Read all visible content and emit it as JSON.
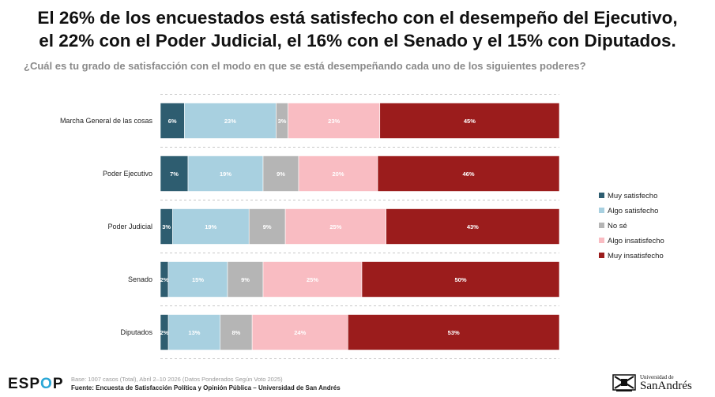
{
  "chart_data": {
    "type": "bar",
    "orientation": "horizontal",
    "stacked": true,
    "title": "El 26% de los encuestados está satisfecho con el desempeño del Ejecutivo, el 22% con el Poder Judicial, el 16% con el Senado y el 15% con Diputados.",
    "title_lines": [
      "El 26% de los encuestados está satisfecho con el desempeño del Ejecutivo,",
      "el 22% con el Poder Judicial, el 16% con el Senado y el 15% con Diputados."
    ],
    "subtitle": "¿Cuál es tu grado de satisfacción con el modo en que se está desempeñando cada uno de los siguientes poderes?",
    "categories": [
      "Marcha General de las cosas",
      "Poder Ejecutivo",
      "Poder Judicial",
      "Senado",
      "Diputados"
    ],
    "series": [
      {
        "name": "Muy satisfecho",
        "color": "#2e5d70",
        "label_color": "#ffffff",
        "values": [
          6,
          7,
          3,
          2,
          2
        ]
      },
      {
        "name": "Algo satisfecho",
        "color": "#a8d0e0",
        "label_color": "#ffffff",
        "values": [
          23,
          19,
          19,
          15,
          13
        ]
      },
      {
        "name": "No sé",
        "color": "#b5b5b5",
        "label_color": "#ffffff",
        "values": [
          3,
          9,
          9,
          9,
          8
        ]
      },
      {
        "name": "Algo insatisfecho",
        "color": "#f9bcc2",
        "label_color": "#ffffff",
        "values": [
          23,
          20,
          25,
          25,
          24
        ]
      },
      {
        "name": "Muy insatisfecho",
        "color": "#9b1c1c",
        "label_color": "#ffffff",
        "values": [
          45,
          46,
          43,
          50,
          53
        ]
      }
    ],
    "legend_position": "right",
    "grid": false
  },
  "footer": {
    "logo_text_start": "ESP",
    "logo_text_o": "O",
    "logo_text_end": "P",
    "base_note": "Base: 1007 casos (Total), Abril 2–10 2026 (Datos Ponderados Según Voto 2025)",
    "source_note": "Fuente: Encuesta de Satisfacción Política y Opinión Pública – Universidad de San Andrés",
    "university_small": "Universidad de",
    "university_big": "SanAndrés"
  }
}
